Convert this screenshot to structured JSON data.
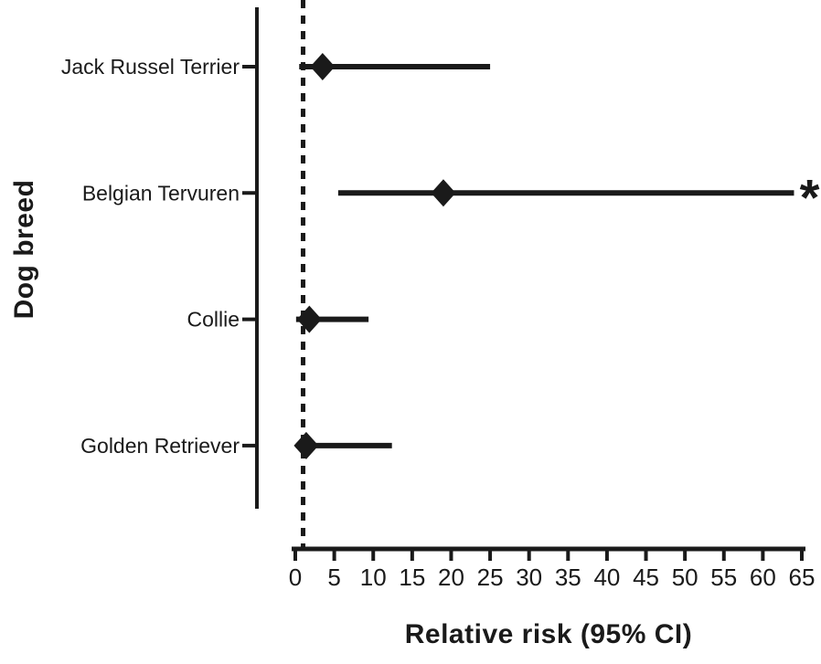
{
  "figure": {
    "background_color": "#ffffff",
    "ink_color": "#1a1a1a"
  },
  "chart_data": {
    "type": "scatter",
    "subtype": "forest-plot",
    "title": "",
    "xlabel": "Relative risk (95% CI)",
    "ylabel": "Dog breed",
    "xlim": [
      0,
      65
    ],
    "xticks": [
      0,
      5,
      10,
      15,
      20,
      25,
      30,
      35,
      40,
      45,
      50,
      55,
      60,
      65
    ],
    "grid": "off",
    "reference_line_x": 1,
    "reference_line_style": "dashed",
    "significance_marker": "*",
    "marker_shape": "diamond",
    "categories": [
      "Jack Russel Terrier",
      "Belgian Tervuren",
      "Collie",
      "Golden Retriever"
    ],
    "points": [
      {
        "category": "Jack Russel Terrier",
        "estimate": 3.5,
        "ci_low": 0.5,
        "ci_high": 25,
        "significant": false
      },
      {
        "category": "Belgian Tervuren",
        "estimate": 19,
        "ci_low": 5.5,
        "ci_high": 64,
        "significant": true
      },
      {
        "category": "Collie",
        "estimate": 1.8,
        "ci_low": 0.1,
        "ci_high": 9.4,
        "significant": false
      },
      {
        "category": "Golden Retriever",
        "estimate": 1.4,
        "ci_low": 0.1,
        "ci_high": 12.4,
        "significant": false
      }
    ]
  }
}
